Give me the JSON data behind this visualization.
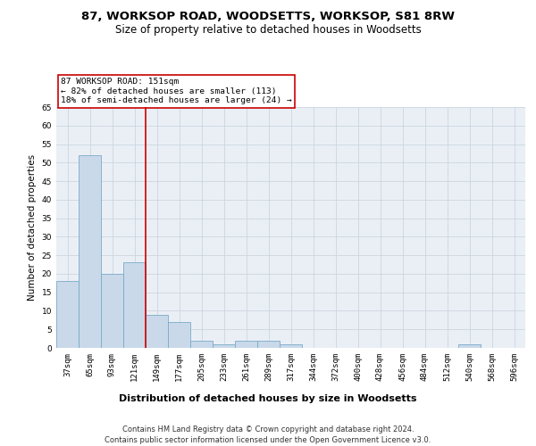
{
  "title1": "87, WORKSOP ROAD, WOODSETTS, WORKSOP, S81 8RW",
  "title2": "Size of property relative to detached houses in Woodsetts",
  "xlabel": "Distribution of detached houses by size in Woodsetts",
  "ylabel": "Number of detached properties",
  "bin_labels": [
    "37sqm",
    "65sqm",
    "93sqm",
    "121sqm",
    "149sqm",
    "177sqm",
    "205sqm",
    "233sqm",
    "261sqm",
    "289sqm",
    "317sqm",
    "344sqm",
    "372sqm",
    "400sqm",
    "428sqm",
    "456sqm",
    "484sqm",
    "512sqm",
    "540sqm",
    "568sqm",
    "596sqm"
  ],
  "bar_heights": [
    18,
    52,
    20,
    23,
    9,
    7,
    2,
    1,
    2,
    2,
    1,
    0,
    0,
    0,
    0,
    0,
    0,
    0,
    1,
    0,
    0
  ],
  "bar_color": "#c9d9ea",
  "bar_edge_color": "#7aaac8",
  "vline_x_index": 4,
  "vline_color": "#cc0000",
  "annotation_text": "87 WORKSOP ROAD: 151sqm\n← 82% of detached houses are smaller (113)\n18% of semi-detached houses are larger (24) →",
  "annotation_box_color": "#ffffff",
  "annotation_box_edge": "#cc0000",
  "ylim": [
    0,
    65
  ],
  "yticks": [
    0,
    5,
    10,
    15,
    20,
    25,
    30,
    35,
    40,
    45,
    50,
    55,
    60,
    65
  ],
  "grid_color": "#ccd5e0",
  "background_color": "#eaeff6",
  "footer_line1": "Contains HM Land Registry data © Crown copyright and database right 2024.",
  "footer_line2": "Contains public sector information licensed under the Open Government Licence v3.0.",
  "title1_fontsize": 9.5,
  "title2_fontsize": 8.5,
  "xlabel_fontsize": 8,
  "ylabel_fontsize": 7.5,
  "tick_fontsize": 6.5,
  "annot_fontsize": 6.8,
  "footer_fontsize": 6
}
